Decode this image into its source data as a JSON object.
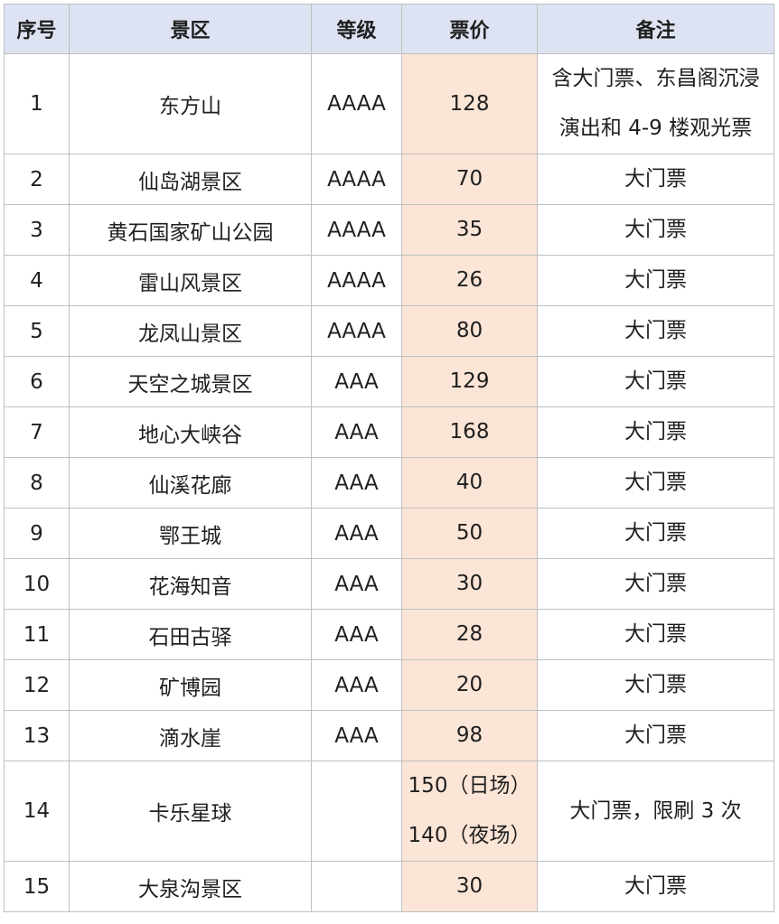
{
  "table": {
    "headers": [
      "序号",
      "景区",
      "等级",
      "票价",
      "备注"
    ],
    "rows": [
      {
        "no": "1",
        "name": "东方山",
        "level": "AAAA",
        "price": [
          "128"
        ],
        "note": [
          "含大门票、东昌阁沉浸",
          "演出和 4-9 楼观光票"
        ]
      },
      {
        "no": "2",
        "name": "仙岛湖景区",
        "level": "AAAA",
        "price": [
          "70"
        ],
        "note": [
          "大门票"
        ]
      },
      {
        "no": "3",
        "name": "黄石国家矿山公园",
        "level": "AAAA",
        "price": [
          "35"
        ],
        "note": [
          "大门票"
        ]
      },
      {
        "no": "4",
        "name": "雷山风景区",
        "level": "AAAA",
        "price": [
          "26"
        ],
        "note": [
          "大门票"
        ]
      },
      {
        "no": "5",
        "name": "龙凤山景区",
        "level": "AAAA",
        "price": [
          "80"
        ],
        "note": [
          "大门票"
        ]
      },
      {
        "no": "6",
        "name": "天空之城景区",
        "level": "AAA",
        "price": [
          "129"
        ],
        "note": [
          "大门票"
        ]
      },
      {
        "no": "7",
        "name": "地心大峡谷",
        "level": "AAA",
        "price": [
          "168"
        ],
        "note": [
          "大门票"
        ]
      },
      {
        "no": "8",
        "name": "仙溪花廊",
        "level": "AAA",
        "price": [
          "40"
        ],
        "note": [
          "大门票"
        ]
      },
      {
        "no": "9",
        "name": "鄂王城",
        "level": "AAA",
        "price": [
          "50"
        ],
        "note": [
          "大门票"
        ]
      },
      {
        "no": "10",
        "name": "花海知音",
        "level": "AAA",
        "price": [
          "30"
        ],
        "note": [
          "大门票"
        ]
      },
      {
        "no": "11",
        "name": "石田古驿",
        "level": "AAA",
        "price": [
          "28"
        ],
        "note": [
          "大门票"
        ]
      },
      {
        "no": "12",
        "name": "矿博园",
        "level": "AAA",
        "price": [
          "20"
        ],
        "note": [
          "大门票"
        ]
      },
      {
        "no": "13",
        "name": "滴水崖",
        "level": "AAA",
        "price": [
          "98"
        ],
        "note": [
          "大门票"
        ]
      },
      {
        "no": "14",
        "name": "卡乐星球",
        "level": "",
        "price": [
          "150（日场）",
          "140（夜场）"
        ],
        "note": [
          "大门票，限刷 3 次"
        ]
      },
      {
        "no": "15",
        "name": "大泉沟景区",
        "level": "",
        "price": [
          "30"
        ],
        "note": [
          "大门票"
        ]
      }
    ]
  },
  "colors": {
    "header_bg": "#dde3f2",
    "price_bg": "#fbe5d6",
    "border": "#bfbfbf"
  }
}
